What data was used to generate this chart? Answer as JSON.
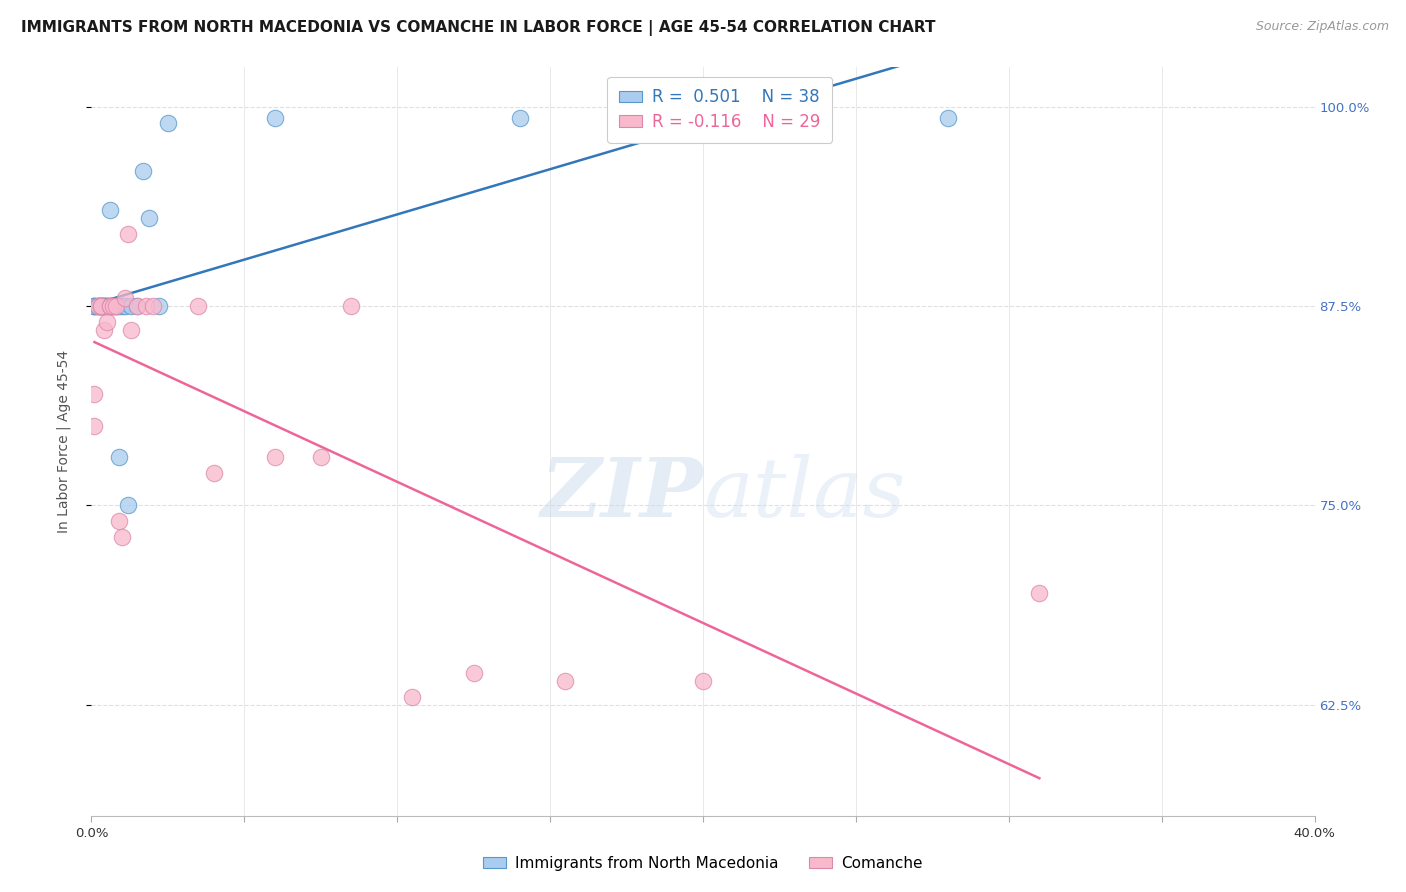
{
  "title": "IMMIGRANTS FROM NORTH MACEDONIA VS COMANCHE IN LABOR FORCE | AGE 45-54 CORRELATION CHART",
  "source": "Source: ZipAtlas.com",
  "ylabel": "In Labor Force | Age 45-54",
  "legend_label1": "Immigrants from North Macedonia",
  "legend_label2": "Comanche",
  "r1": 0.501,
  "n1": 38,
  "r2": -0.116,
  "n2": 29,
  "color1": "#aaccee",
  "color2": "#f9b8cc",
  "edge_color1": "#5599cc",
  "edge_color2": "#dd88aa",
  "trend_color1": "#3377bb",
  "trend_color2": "#ee6699",
  "xlim": [
    0.0,
    0.4
  ],
  "ylim": [
    0.555,
    1.025
  ],
  "yticks": [
    0.625,
    0.75,
    0.875,
    1.0
  ],
  "ytick_labels": [
    "62.5%",
    "75.0%",
    "87.5%",
    "100.0%"
  ],
  "xticks": [
    0.0,
    0.05,
    0.1,
    0.15,
    0.2,
    0.25,
    0.3,
    0.35,
    0.4
  ],
  "xtick_show": [
    "0.0%",
    "",
    "",
    "",
    "",
    "",
    "",
    "",
    "40.0%"
  ],
  "blue_x": [
    0.001,
    0.001,
    0.001,
    0.002,
    0.002,
    0.002,
    0.003,
    0.003,
    0.003,
    0.003,
    0.004,
    0.004,
    0.004,
    0.004,
    0.005,
    0.005,
    0.005,
    0.006,
    0.006,
    0.006,
    0.007,
    0.007,
    0.008,
    0.008,
    0.009,
    0.009,
    0.01,
    0.011,
    0.012,
    0.013,
    0.015,
    0.017,
    0.019,
    0.022,
    0.025,
    0.06,
    0.14,
    0.28
  ],
  "blue_y": [
    0.875,
    0.875,
    0.875,
    0.875,
    0.875,
    0.875,
    0.875,
    0.875,
    0.875,
    0.875,
    0.875,
    0.875,
    0.875,
    0.875,
    0.875,
    0.875,
    0.875,
    0.875,
    0.875,
    0.935,
    0.875,
    0.875,
    0.875,
    0.875,
    0.875,
    0.78,
    0.875,
    0.875,
    0.75,
    0.875,
    0.875,
    0.96,
    0.93,
    0.875,
    0.99,
    0.993,
    0.993,
    0.993
  ],
  "pink_x": [
    0.001,
    0.001,
    0.002,
    0.003,
    0.003,
    0.004,
    0.005,
    0.006,
    0.006,
    0.007,
    0.008,
    0.009,
    0.01,
    0.011,
    0.012,
    0.013,
    0.015,
    0.018,
    0.02,
    0.035,
    0.04,
    0.06,
    0.075,
    0.085,
    0.105,
    0.125,
    0.155,
    0.2,
    0.31
  ],
  "pink_y": [
    0.8,
    0.82,
    0.875,
    0.875,
    0.875,
    0.86,
    0.865,
    0.875,
    0.875,
    0.875,
    0.875,
    0.74,
    0.73,
    0.88,
    0.92,
    0.86,
    0.875,
    0.875,
    0.875,
    0.875,
    0.77,
    0.78,
    0.78,
    0.875,
    0.63,
    0.645,
    0.64,
    0.64,
    0.695
  ],
  "watermark_zip": "ZIP",
  "watermark_atlas": "atlas",
  "bg_color": "#ffffff",
  "grid_color": "#e0e0e0",
  "title_fontsize": 11,
  "tick_fontsize": 9.5,
  "legend_fontsize": 12,
  "ylabel_fontsize": 10,
  "source_fontsize": 9
}
